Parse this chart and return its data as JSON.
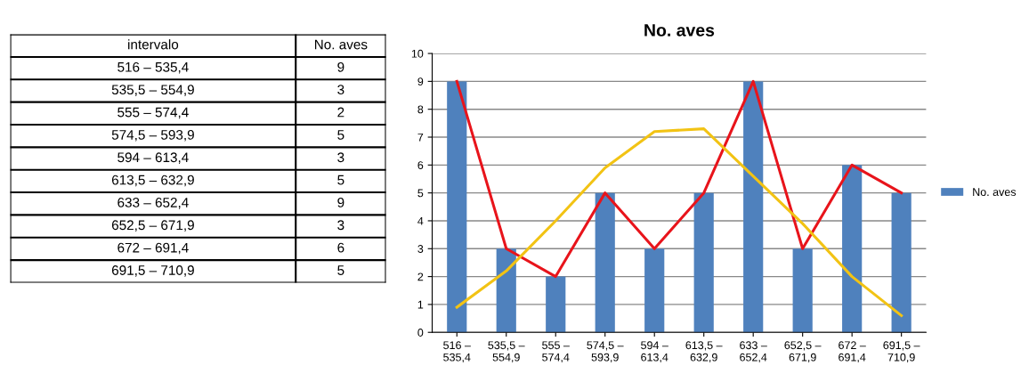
{
  "chart_data": [
    {
      "type": "other",
      "annotations": [
        "intervalo",
        "No. aves",
        "516 – 535,4",
        "9",
        "535,5 – 554,9",
        "3",
        "555 – 574,4",
        "2",
        "574,5 – 593,9",
        "5",
        "594 – 613,4",
        "3",
        "613,5 – 632,9",
        "5",
        "633 – 652,4",
        "9",
        "652,5 – 671,9",
        "3",
        "672 – 691,4",
        "6",
        "691,5 – 710,9",
        "5"
      ]
    },
    {
      "type": "bar",
      "title": "No. aves",
      "categories": [
        "516 –\n535,4",
        "535,5 –\n554,9",
        "555 –\n574,4",
        "574,5 –\n593,9",
        "594 –\n613,4",
        "613,5 –\n632,9",
        "633 –\n652,4",
        "652,5 –\n671,9",
        "672 –\n691,4",
        "691,5 –\n710,9"
      ],
      "series": [
        {
          "name": "No. aves",
          "color": "#4f81bd",
          "values": [
            9,
            3,
            2,
            5,
            3,
            5,
            9,
            3,
            6,
            5
          ]
        },
        {
          "type": "line",
          "color": "#e8141b",
          "values": [
            9,
            3,
            2,
            5,
            3,
            5,
            9,
            3,
            6,
            5
          ]
        },
        {
          "type": "line",
          "color": "#f2c314",
          "values": [
            0.9,
            2.2,
            4.0,
            5.9,
            7.2,
            7.3,
            5.6,
            3.9,
            2.0,
            0.6
          ]
        }
      ],
      "ylim": [
        0,
        10
      ],
      "yticks": [
        0,
        1,
        2,
        3,
        4,
        5,
        6,
        7,
        8,
        9,
        10
      ],
      "grid": "y",
      "legend": "right"
    }
  ]
}
